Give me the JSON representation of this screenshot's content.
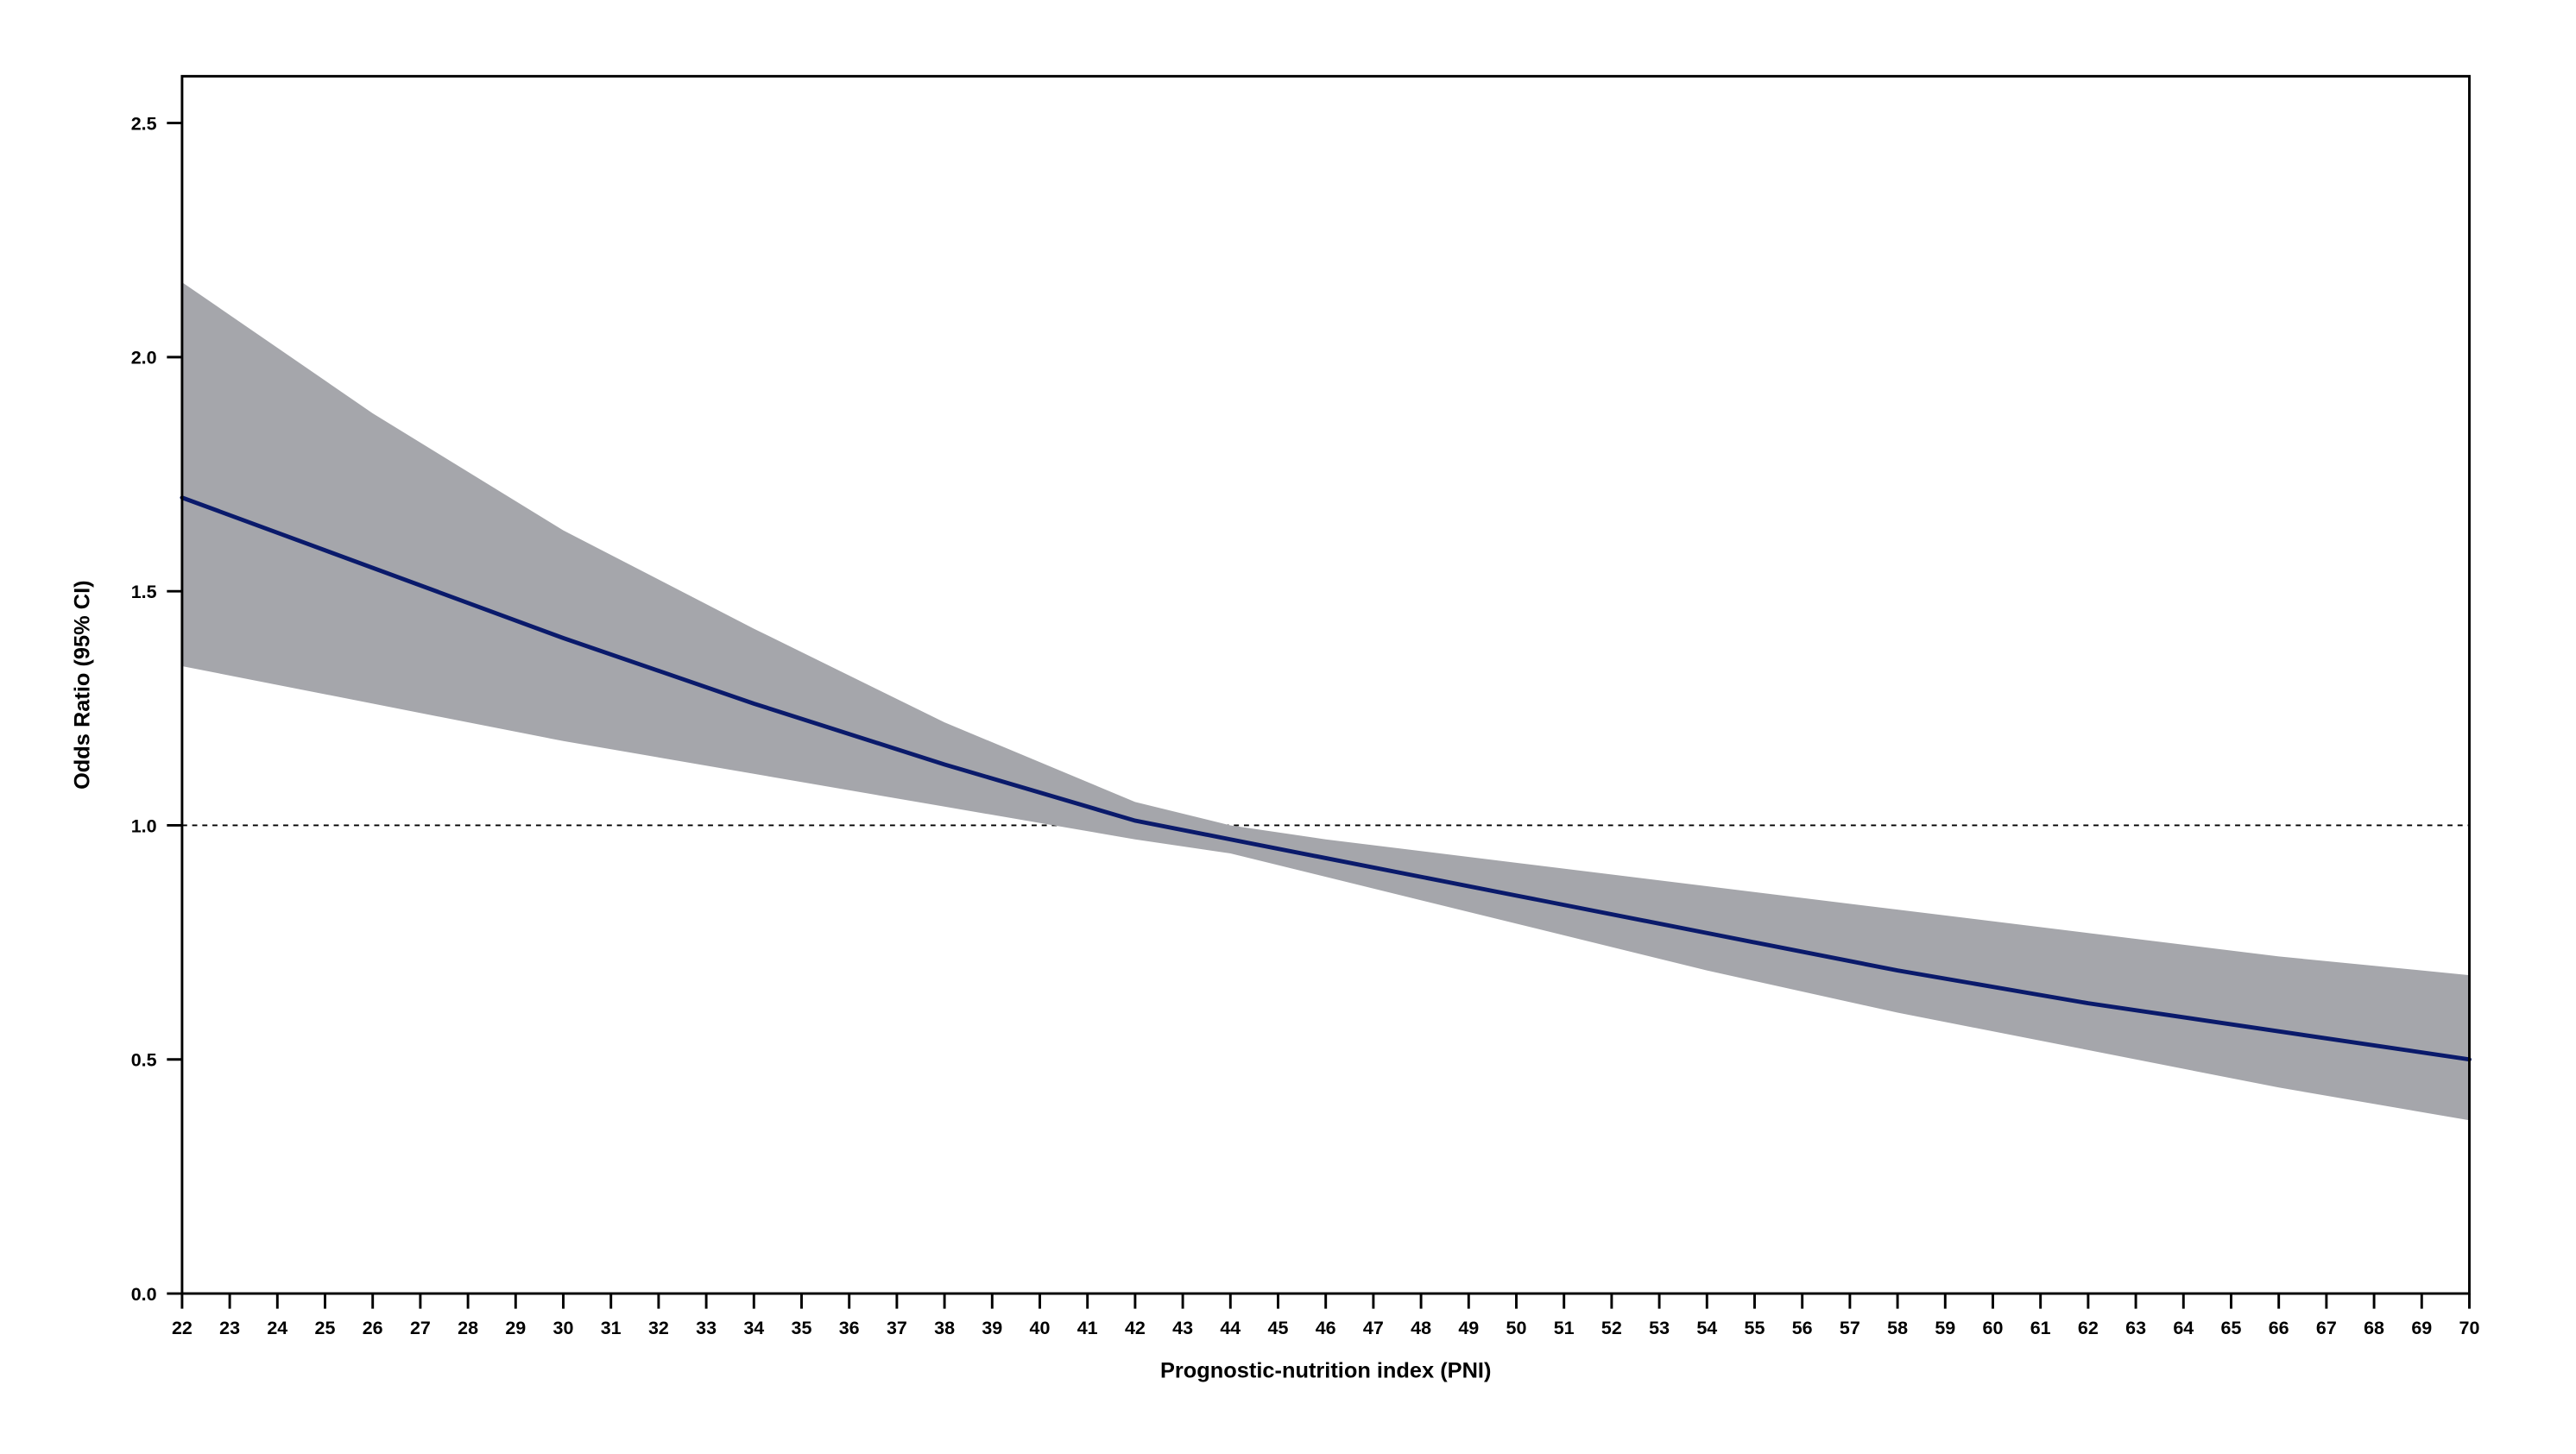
{
  "chart": {
    "type": "line-with-ci-band",
    "background_color": "#ffffff",
    "plot_border_color": "#000000",
    "axis_color": "#000000",
    "x": {
      "label": "Prognostic-nutrition index (PNI)",
      "min": 22,
      "max": 70,
      "ticks": [
        22,
        23,
        24,
        25,
        26,
        27,
        28,
        29,
        30,
        31,
        32,
        33,
        34,
        35,
        36,
        37,
        38,
        39,
        40,
        41,
        42,
        43,
        44,
        45,
        46,
        47,
        48,
        49,
        50,
        51,
        52,
        53,
        54,
        55,
        56,
        57,
        58,
        59,
        60,
        61,
        62,
        63,
        64,
        65,
        66,
        67,
        68,
        69,
        70
      ],
      "label_fontsize": 26,
      "tick_fontsize": 22,
      "tick_fontweight": "700"
    },
    "y": {
      "label": "Odds Ratio (95% CI)",
      "min": 0.0,
      "max": 2.6,
      "ticks": [
        0.0,
        0.5,
        1.0,
        1.5,
        2.0,
        2.5
      ],
      "tick_labels": [
        "0.0",
        "0.5",
        "1.0",
        "1.5",
        "2.0",
        "2.5"
      ],
      "label_fontsize": 26,
      "tick_fontsize": 22,
      "tick_fontweight": "700"
    },
    "reference_line": {
      "y": 1.0,
      "color": "#000000",
      "dash": "6 6",
      "width": 2
    },
    "ci_band": {
      "color": "#a5a6ab",
      "points_x": [
        22,
        26,
        30,
        34,
        38,
        42,
        44,
        46,
        50,
        54,
        58,
        62,
        66,
        70
      ],
      "upper": [
        2.16,
        1.88,
        1.63,
        1.42,
        1.22,
        1.05,
        1.0,
        0.97,
        0.92,
        0.87,
        0.82,
        0.77,
        0.72,
        0.68
      ],
      "lower": [
        1.34,
        1.26,
        1.18,
        1.11,
        1.04,
        0.97,
        0.94,
        0.89,
        0.79,
        0.69,
        0.6,
        0.52,
        0.44,
        0.37
      ]
    },
    "line": {
      "color": "#0a1a6b",
      "width": 5,
      "points_x": [
        22,
        26,
        30,
        34,
        38,
        42,
        44,
        46,
        50,
        54,
        58,
        62,
        66,
        70
      ],
      "points_y": [
        1.7,
        1.55,
        1.4,
        1.26,
        1.13,
        1.01,
        0.97,
        0.93,
        0.85,
        0.77,
        0.69,
        0.62,
        0.56,
        0.5
      ]
    }
  }
}
